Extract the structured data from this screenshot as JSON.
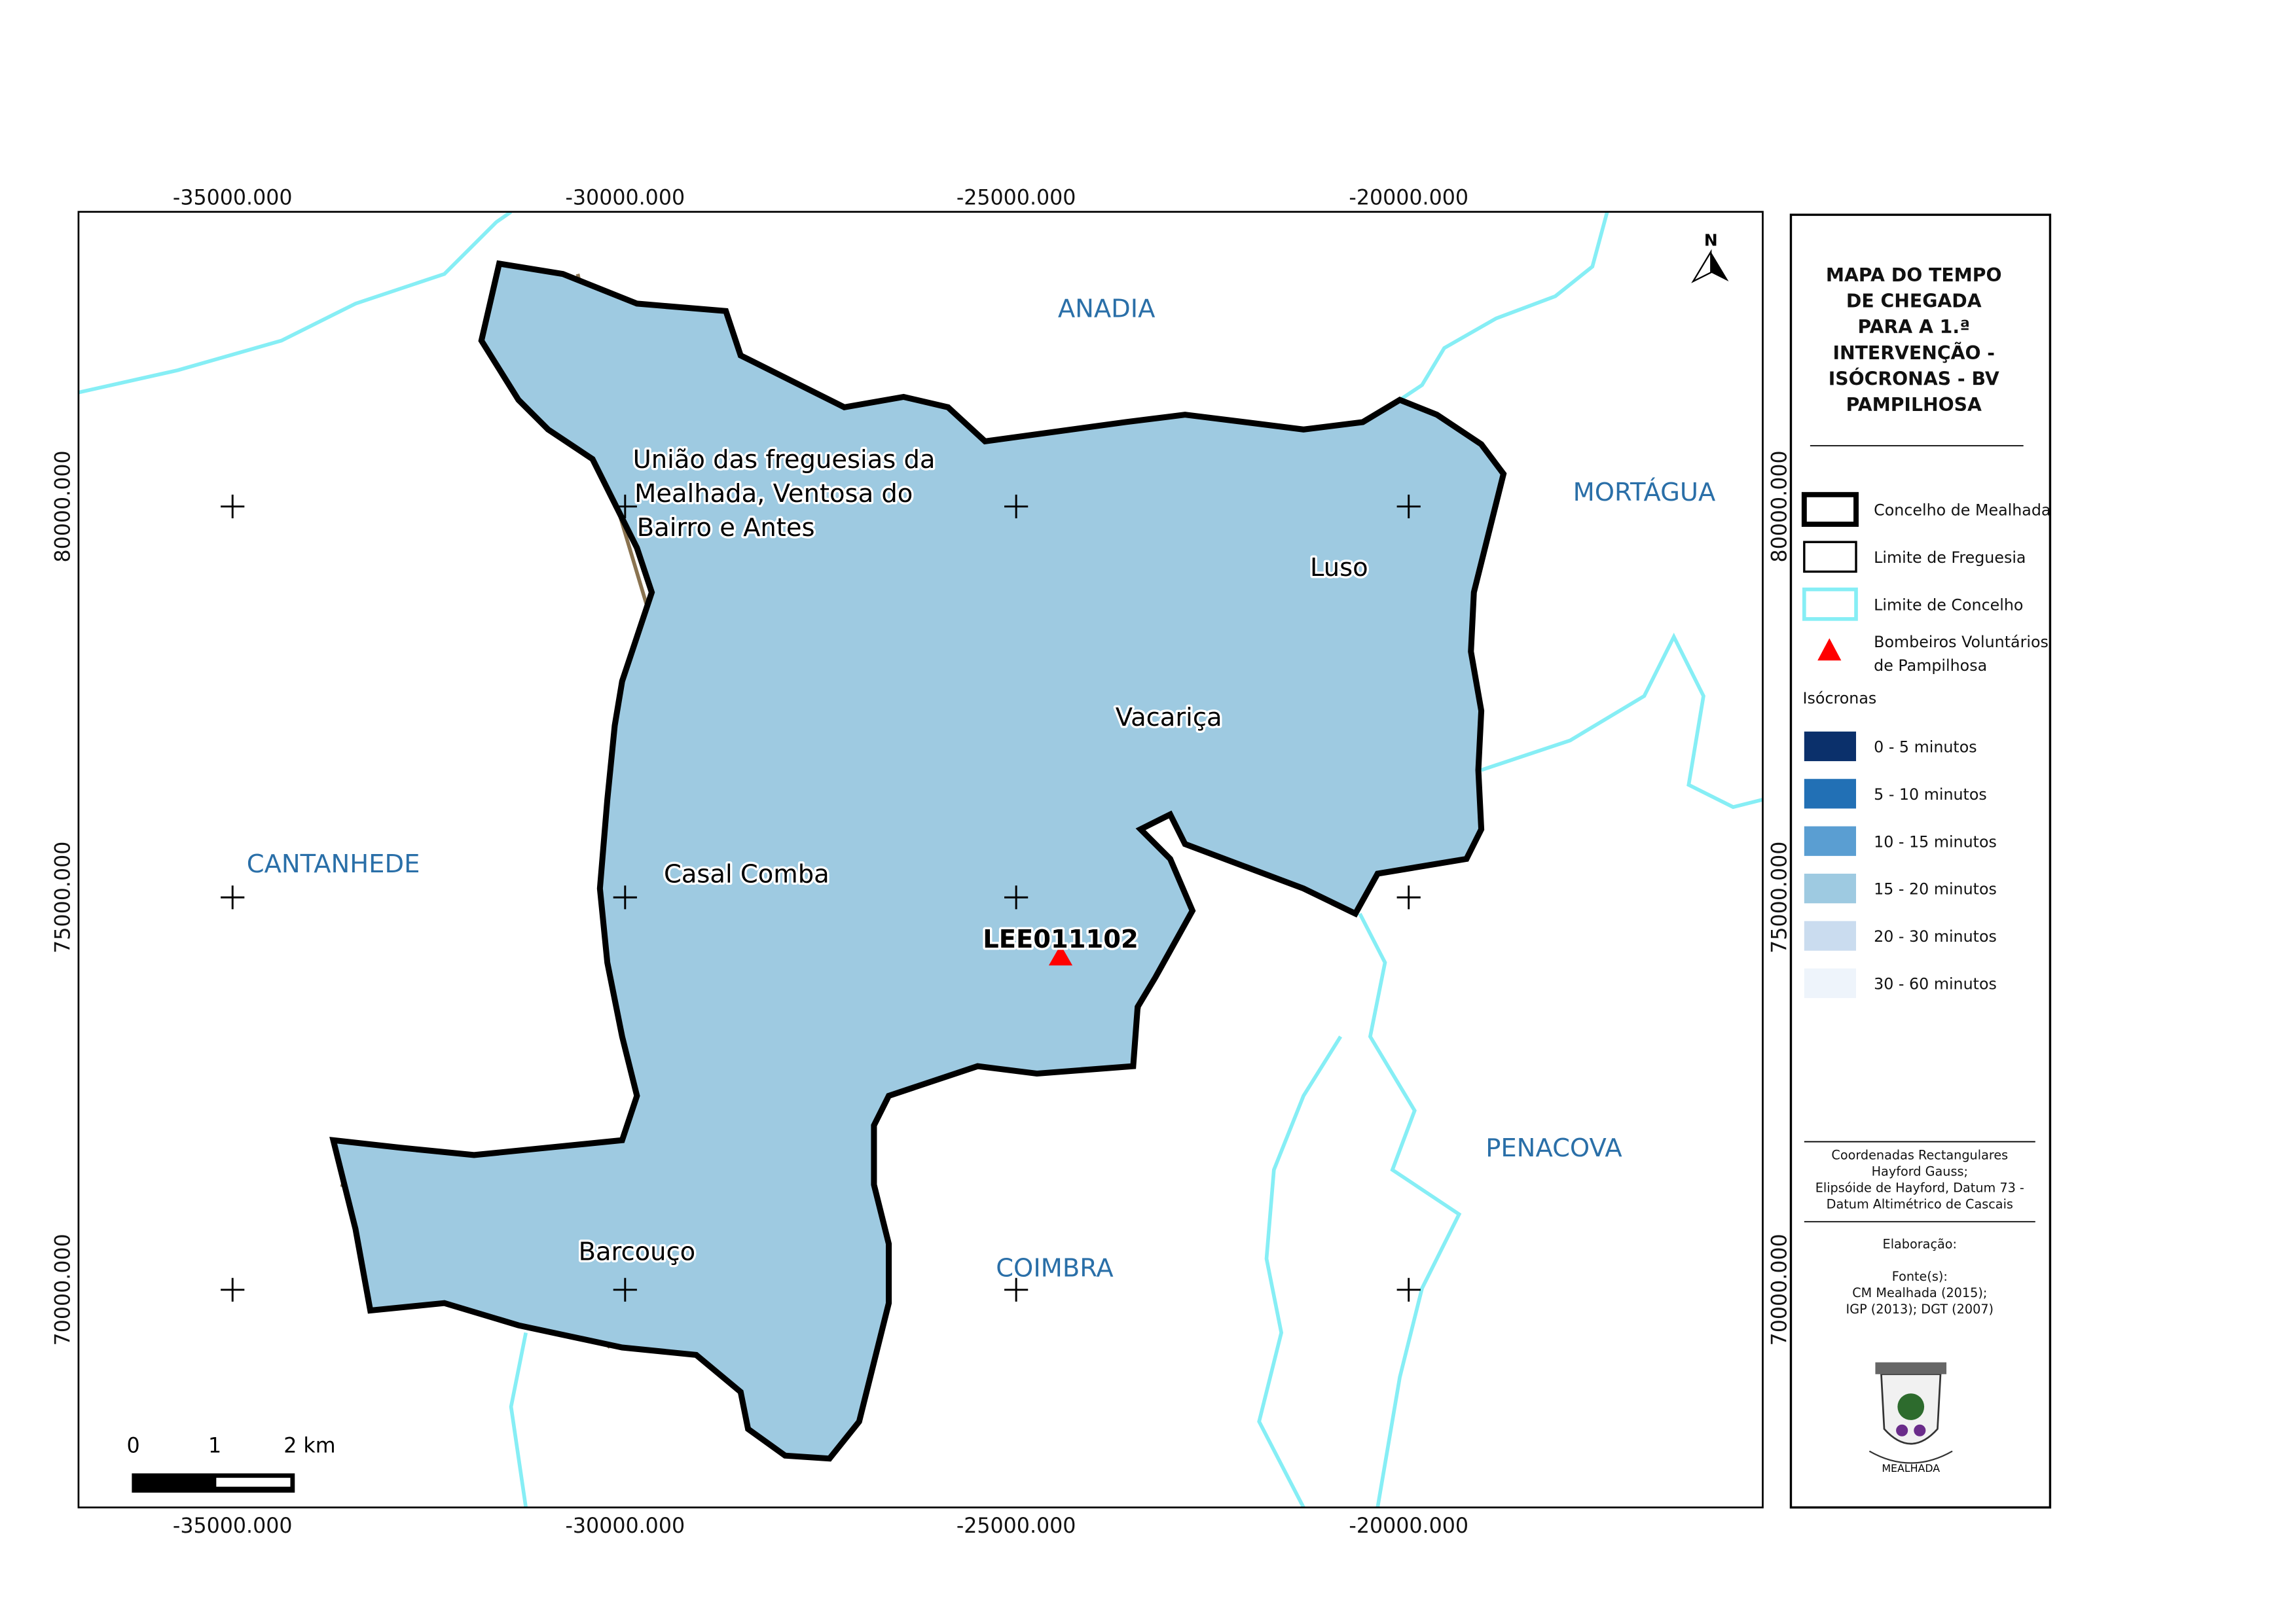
{
  "map": {
    "x_ticks": [
      "-35000.000",
      "-30000.000",
      "-25000.000",
      "-20000.000"
    ],
    "y_ticks": [
      "80000.000",
      "75000.000",
      "70000.000"
    ],
    "parishes": {
      "uniao": [
        "União das freguesias da",
        "Mealhada, Ventosa do",
        "Bairro e Antes"
      ],
      "casal_comba": "Casal Comba",
      "barcouco": "Barcouço",
      "vacarica": "Vacariça",
      "luso": "Luso"
    },
    "neighbors": {
      "anadia": "ANADIA",
      "mortagua": "MORTÁGUA",
      "cantanhede": "CANTANHEDE",
      "penacova": "PENACOVA",
      "coimbra": "COIMBRA"
    },
    "station_code": "LEE011102",
    "north": "N",
    "scale_labels": [
      "0",
      "1",
      "2 km"
    ]
  },
  "legend": {
    "title_lines": [
      "MAPA DO TEMPO",
      "DE CHEGADA",
      "PARA A 1.ª",
      "INTERVENÇÃO -",
      "ISÓCRONAS - BV",
      "PAMPILHOSA"
    ],
    "layers": [
      "Concelho de Mealhada",
      "Limite de Freguesia",
      "Limite de Concelho"
    ],
    "station_lines": [
      "Bombeiros Voluntários",
      "de Pampilhosa"
    ],
    "isochrones_title": "Isócronas",
    "classes": [
      {
        "label": "0 - 5 minutos",
        "color": "#0b306b"
      },
      {
        "label": "5 - 10 minutos",
        "color": "#2270b5"
      },
      {
        "label": "10 - 15 minutos",
        "color": "#5a9ed2"
      },
      {
        "label": "15 - 20 minutos",
        "color": "#9ecae1"
      },
      {
        "label": "20 - 30 minutos",
        "color": "#cadcef"
      },
      {
        "label": "30 - 60 minutos",
        "color": "#eef4fb"
      }
    ],
    "coordinates_lines": [
      "Coordenadas Rectangulares",
      "Hayford Gauss;",
      "Elipsóide de Hayford, Datum 73 -",
      "Datum Altimétrico de Cascais"
    ],
    "elaboration": "Elaboração:",
    "sources_lines": [
      "Fonte(s):",
      "CM Mealhada (2015);",
      "IGP (2013); DGT (2007)"
    ],
    "logo_text": "MEALHADA"
  }
}
